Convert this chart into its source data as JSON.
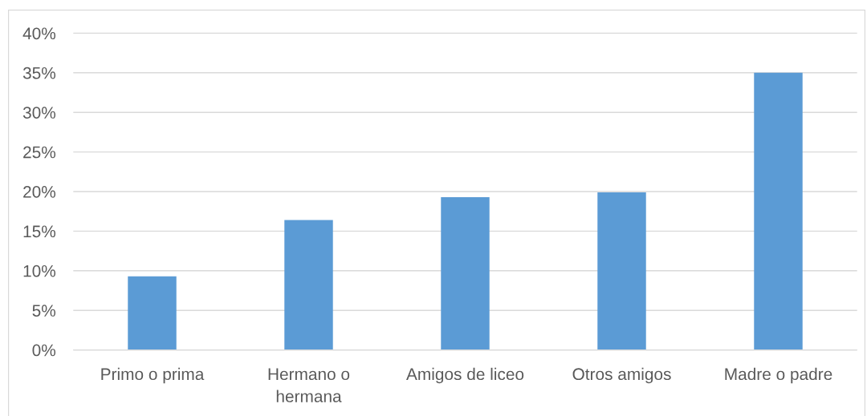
{
  "chart_data": {
    "type": "bar",
    "categories": [
      "Primo o prima",
      "Hermano o hermana",
      "Amigos de liceo",
      "Otros amigos",
      "Madre o padre"
    ],
    "values": [
      9.3,
      16.4,
      19.3,
      19.9,
      35.0
    ],
    "color": "#5b9bd5",
    "ylim": [
      0,
      40
    ],
    "yticks": [
      {
        "value": 0,
        "label": "0%"
      },
      {
        "value": 5,
        "label": "5%"
      },
      {
        "value": 10,
        "label": "10%"
      },
      {
        "value": 15,
        "label": "15%"
      },
      {
        "value": 20,
        "label": "20%"
      },
      {
        "value": 25,
        "label": "25%"
      },
      {
        "value": 30,
        "label": "30%"
      },
      {
        "value": 35,
        "label": "35%"
      },
      {
        "value": 40,
        "label": "40%"
      }
    ],
    "grid": "y"
  }
}
